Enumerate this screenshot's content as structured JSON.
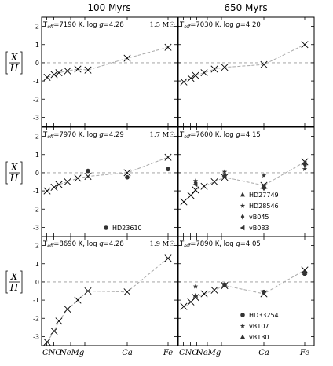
{
  "chart_data": {
    "type": "scatter",
    "column_titles": [
      "100 Myrs",
      "650 Myrs"
    ],
    "x_tick_labels": [
      "C",
      "N",
      "O",
      "Ne",
      "Mg",
      "Ca",
      "Fe"
    ],
    "y_label_num": "X",
    "y_label_den": "H",
    "ylim": [
      -3.5,
      2.5
    ],
    "yticks": [
      -3,
      -2,
      -1,
      0,
      1,
      2
    ],
    "panels": [
      {
        "annotation": "T_eff=7190 K, log g=4.28",
        "mass": "1.5 M☉",
        "model": {
          "elements": [
            "C",
            "N",
            "O",
            "Ne",
            "Na",
            "Mg",
            "Ca",
            "Fe"
          ],
          "values": [
            -0.8,
            -0.65,
            -0.55,
            -0.45,
            -0.35,
            -0.4,
            0.25,
            0.85
          ]
        },
        "observed": []
      },
      {
        "annotation": "T_eff=7030 K, log g=4.20",
        "mass": "",
        "model": {
          "elements": [
            "C",
            "N",
            "O",
            "Ne",
            "Na",
            "Mg",
            "Ca",
            "Fe"
          ],
          "values": [
            -1.05,
            -0.85,
            -0.7,
            -0.55,
            -0.35,
            -0.25,
            -0.1,
            1.0
          ]
        },
        "observed": []
      },
      {
        "annotation": "T_eff=7970 K, log g=4.29",
        "mass": "1.7 M☉",
        "model": {
          "elements": [
            "C",
            "N",
            "O",
            "Ne",
            "Na",
            "Mg",
            "Ca",
            "Fe"
          ],
          "values": [
            -1.0,
            -0.8,
            -0.65,
            -0.5,
            -0.3,
            -0.2,
            0.0,
            0.85
          ]
        },
        "observed": [
          {
            "star": "HD23610",
            "marker": "circle",
            "points": [
              {
                "element": "Mg",
                "value": 0.1
              },
              {
                "element": "Ca",
                "value": -0.25
              },
              {
                "element": "Fe",
                "value": 0.2
              }
            ]
          }
        ]
      },
      {
        "annotation": "T_eff=7600 K, log g=4.15",
        "mass": "",
        "model": {
          "elements": [
            "C",
            "N",
            "O",
            "Ne",
            "Na",
            "Mg",
            "Ca",
            "Fe"
          ],
          "values": [
            -1.6,
            -1.25,
            -0.95,
            -0.75,
            -0.5,
            -0.25,
            -0.7,
            0.6
          ]
        },
        "observed": [
          {
            "star": "HD27749",
            "marker": "triangle",
            "points": [
              {
                "element": "Mg",
                "value": -0.2
              },
              {
                "element": "Ca",
                "value": -0.8
              },
              {
                "element": "Fe",
                "value": 0.55
              }
            ]
          },
          {
            "star": "HD28546",
            "marker": "star",
            "points": [
              {
                "element": "O",
                "value": -0.45
              },
              {
                "element": "Mg",
                "value": 0.05
              },
              {
                "element": "Ca",
                "value": -0.15
              },
              {
                "element": "Fe",
                "value": 0.2
              }
            ]
          },
          {
            "star": "vB045",
            "marker": "diamond",
            "points": [
              {
                "element": "O",
                "value": -0.55
              },
              {
                "element": "Mg",
                "value": -0.15
              },
              {
                "element": "Ca",
                "value": -0.85
              },
              {
                "element": "Fe",
                "value": 0.45
              }
            ]
          },
          {
            "star": "vB083",
            "marker": "left-triangle",
            "points": [
              {
                "element": "O",
                "value": -0.65
              },
              {
                "element": "Mg",
                "value": -0.2
              },
              {
                "element": "Ca",
                "value": -0.7
              },
              {
                "element": "Fe",
                "value": 0.5
              }
            ]
          }
        ]
      },
      {
        "annotation": "T_eff=8690 K, log g=4.28",
        "mass": "1.9 M☉",
        "model": {
          "elements": [
            "C",
            "N",
            "O",
            "Ne",
            "Na",
            "Mg",
            "Ca",
            "Fe"
          ],
          "values": [
            -3.3,
            -2.7,
            -2.15,
            -1.5,
            -1.0,
            -0.5,
            -0.55,
            1.3
          ]
        },
        "observed": []
      },
      {
        "annotation": "T_eff=7890 K, log g=4.05",
        "mass": "",
        "model": {
          "elements": [
            "C",
            "N",
            "O",
            "Ne",
            "Na",
            "Mg",
            "Ca",
            "Fe"
          ],
          "values": [
            -1.35,
            -1.1,
            -0.85,
            -0.65,
            -0.45,
            -0.2,
            -0.65,
            0.65
          ]
        },
        "observed": [
          {
            "star": "HD33254",
            "marker": "circle",
            "points": [
              {
                "element": "Mg",
                "value": -0.15
              },
              {
                "element": "Ca",
                "value": -0.55
              },
              {
                "element": "Fe",
                "value": 0.45
              }
            ]
          },
          {
            "star": "vB107",
            "marker": "star",
            "points": [
              {
                "element": "O",
                "value": -0.25
              },
              {
                "element": "Ca",
                "value": -0.6
              },
              {
                "element": "Fe",
                "value": 0.55
              }
            ]
          },
          {
            "star": "vB130",
            "marker": "triangle",
            "points": [
              {
                "element": "O",
                "value": -0.75
              },
              {
                "element": "Mg",
                "value": -0.15
              },
              {
                "element": "Fe",
                "value": 0.5
              }
            ]
          }
        ]
      }
    ]
  }
}
